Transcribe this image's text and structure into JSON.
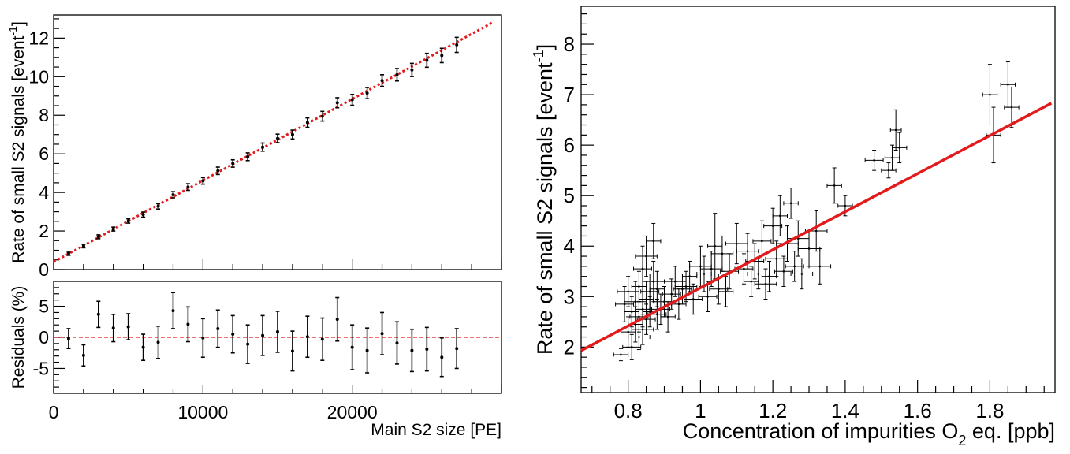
{
  "chart_data": [
    {
      "type": "scatter",
      "panel": "top-left",
      "ylabel": "Rate of small S2 signals [event",
      "ylabel_sup": "-1",
      "ylabel_close": "]",
      "xlim": [
        0,
        30000
      ],
      "ylim": [
        0,
        13.2
      ],
      "xticks": [
        0,
        10000,
        20000
      ],
      "xtick_labels": [
        "0",
        "10000",
        "20000"
      ],
      "yticks": [
        0,
        2,
        4,
        6,
        8,
        10,
        12
      ],
      "ytick_labels": [
        "0",
        "2",
        "4",
        "6",
        "8",
        "10",
        "12"
      ],
      "fit": {
        "type": "linear",
        "style": "dotted",
        "color": "#e31a1c",
        "x": [
          0,
          29500
        ],
        "y": [
          0.4,
          12.85
        ]
      },
      "series": [
        {
          "x": [
            1000,
            2000,
            3000,
            4000,
            5000,
            6000,
            7000,
            8000,
            9000,
            10000,
            11000,
            12000,
            13000,
            14000,
            15000,
            16000,
            17000,
            18000,
            19000,
            20000,
            21000,
            22000,
            23000,
            24000,
            25000,
            26000,
            27000
          ],
          "y": [
            0.82,
            1.22,
            1.7,
            2.1,
            2.52,
            2.85,
            3.28,
            3.88,
            4.28,
            4.6,
            5.12,
            5.5,
            5.85,
            6.35,
            6.8,
            7.0,
            7.62,
            7.95,
            8.65,
            8.8,
            9.15,
            9.8,
            10.1,
            10.35,
            10.85,
            11.1,
            11.65
          ],
          "err": [
            0.04,
            0.05,
            0.06,
            0.06,
            0.07,
            0.09,
            0.1,
            0.12,
            0.13,
            0.13,
            0.15,
            0.15,
            0.16,
            0.17,
            0.18,
            0.19,
            0.2,
            0.21,
            0.22,
            0.24,
            0.25,
            0.26,
            0.28,
            0.3,
            0.32,
            0.33,
            0.35
          ]
        }
      ]
    },
    {
      "type": "scatter",
      "panel": "bottom-left",
      "ylabel": "Residuals (%)",
      "xlabel": "Main S2 size [PE]",
      "xlim": [
        0,
        30000
      ],
      "ylim": [
        -9,
        9
      ],
      "yticks": [
        -5,
        0,
        5
      ],
      "ytick_labels": [
        "-5",
        "0",
        "5"
      ],
      "reference_line": {
        "y": 0,
        "style": "dashed",
        "color": "#e31a1c"
      },
      "series": [
        {
          "x": [
            1000,
            2000,
            3000,
            4000,
            5000,
            6000,
            7000,
            8000,
            9000,
            10000,
            11000,
            12000,
            13000,
            14000,
            15000,
            16000,
            17000,
            18000,
            19000,
            20000,
            21000,
            22000,
            23000,
            24000,
            25000,
            26000,
            27000
          ],
          "y": [
            -0.2,
            -2.9,
            3.7,
            1.5,
            1.7,
            -1.6,
            -0.8,
            4.3,
            2.1,
            -0.1,
            1.4,
            0.5,
            -1.1,
            0.3,
            0.9,
            -2.2,
            0.1,
            -0.3,
            2.9,
            -1.6,
            -2.1,
            0.6,
            -0.9,
            -2.1,
            -1.9,
            -3.2,
            -1.8
          ],
          "err": [
            1.6,
            1.7,
            2.1,
            2.2,
            2.1,
            2.1,
            2.6,
            2.9,
            2.8,
            3.1,
            3.0,
            3.0,
            3.1,
            3.2,
            3.3,
            3.2,
            3.3,
            3.4,
            3.5,
            3.6,
            3.6,
            3.4,
            3.4,
            3.4,
            3.5,
            3.1,
            3.2
          ]
        }
      ]
    },
    {
      "type": "scatter",
      "panel": "right",
      "ylabel": "Rate of small S2 signals [event",
      "ylabel_sup": "-1",
      "ylabel_close": "]",
      "xlabel": "Concentration of impurities O",
      "xlabel_sub": "2",
      "xlabel_tail": " eq. [ppb]",
      "xlim": [
        0.67,
        1.98
      ],
      "ylim": [
        1.1,
        8.75
      ],
      "xticks": [
        0.8,
        1.0,
        1.2,
        1.4,
        1.6,
        1.8
      ],
      "xtick_labels": [
        "0.8",
        "1",
        "1.2",
        "1.4",
        "1.6",
        "1.8"
      ],
      "yticks": [
        2,
        3,
        4,
        5,
        6,
        7,
        8
      ],
      "ytick_labels": [
        "2",
        "3",
        "4",
        "5",
        "6",
        "7",
        "8"
      ],
      "fit": {
        "type": "linear",
        "style": "solid",
        "color": "#e31a1c",
        "x": [
          0.67,
          1.97
        ],
        "y": [
          1.93,
          6.83
        ]
      },
      "series": [
        {
          "x": [
            0.78,
            0.79,
            0.8,
            0.8,
            0.81,
            0.81,
            0.82,
            0.82,
            0.83,
            0.83,
            0.83,
            0.84,
            0.84,
            0.84,
            0.85,
            0.85,
            0.85,
            0.86,
            0.86,
            0.87,
            0.87,
            0.88,
            0.88,
            0.89,
            0.9,
            0.91,
            0.92,
            0.93,
            0.94,
            0.95,
            0.96,
            0.97,
            0.98,
            1.0,
            1.01,
            1.02,
            1.03,
            1.04,
            1.05,
            1.06,
            1.07,
            1.08,
            1.1,
            1.12,
            1.13,
            1.14,
            1.15,
            1.16,
            1.17,
            1.18,
            1.19,
            1.2,
            1.21,
            1.22,
            1.23,
            1.24,
            1.25,
            1.26,
            1.27,
            1.28,
            1.3,
            1.32,
            1.33,
            1.37,
            1.4,
            1.48,
            1.52,
            1.53,
            1.54,
            1.55,
            1.8,
            1.81,
            1.85,
            1.86
          ],
          "y": [
            1.85,
            2.85,
            2.3,
            3.1,
            2.7,
            2.0,
            2.9,
            2.45,
            2.6,
            3.2,
            2.2,
            2.75,
            3.55,
            2.35,
            2.95,
            2.55,
            3.8,
            2.7,
            3.1,
            4.1,
            3.3,
            2.65,
            3.15,
            2.75,
            2.9,
            2.6,
            3.05,
            3.3,
            2.85,
            3.15,
            3.2,
            3.4,
            2.95,
            3.6,
            3.45,
            3.0,
            3.55,
            4.0,
            3.15,
            3.85,
            3.1,
            3.5,
            4.05,
            3.55,
            3.9,
            3.3,
            3.7,
            3.45,
            4.1,
            3.25,
            3.4,
            4.4,
            3.75,
            4.6,
            3.5,
            4.05,
            4.85,
            3.6,
            4.15,
            3.45,
            3.95,
            4.3,
            3.6,
            5.2,
            4.8,
            5.7,
            5.5,
            5.75,
            6.3,
            5.95,
            7.0,
            6.2,
            7.2,
            6.75
          ],
          "xerr": [
            0.02,
            0.025,
            0.02,
            0.03,
            0.02,
            0.025,
            0.03,
            0.02,
            0.025,
            0.02,
            0.03,
            0.02,
            0.025,
            0.03,
            0.02,
            0.025,
            0.03,
            0.02,
            0.025,
            0.02,
            0.03,
            0.025,
            0.02,
            0.025,
            0.03,
            0.02,
            0.025,
            0.03,
            0.02,
            0.025,
            0.03,
            0.02,
            0.025,
            0.03,
            0.02,
            0.025,
            0.03,
            0.02,
            0.025,
            0.03,
            0.02,
            0.025,
            0.03,
            0.025,
            0.03,
            0.02,
            0.025,
            0.03,
            0.025,
            0.03,
            0.02,
            0.025,
            0.03,
            0.02,
            0.025,
            0.03,
            0.02,
            0.025,
            0.03,
            0.03,
            0.03,
            0.03,
            0.03,
            0.02,
            0.02,
            0.025,
            0.02,
            0.02,
            0.015,
            0.02,
            0.02,
            0.02,
            0.02,
            0.02
          ],
          "yerr": [
            0.12,
            0.35,
            0.3,
            0.3,
            0.3,
            0.25,
            0.4,
            0.35,
            0.3,
            0.3,
            0.25,
            0.35,
            0.45,
            0.3,
            0.35,
            0.3,
            0.4,
            0.3,
            0.35,
            0.35,
            0.4,
            0.3,
            0.35,
            0.3,
            0.3,
            0.3,
            0.3,
            0.3,
            0.3,
            0.3,
            0.3,
            0.3,
            0.3,
            0.4,
            0.35,
            0.3,
            0.35,
            0.65,
            0.3,
            0.35,
            0.3,
            0.35,
            0.4,
            0.3,
            0.35,
            0.3,
            0.35,
            0.3,
            0.4,
            0.3,
            0.3,
            0.35,
            0.35,
            0.4,
            0.3,
            0.35,
            0.3,
            0.3,
            0.35,
            0.3,
            0.35,
            0.4,
            0.35,
            0.35,
            0.2,
            0.2,
            0.15,
            0.25,
            0.4,
            0.3,
            0.6,
            0.55,
            0.45,
            0.4
          ]
        }
      ]
    }
  ]
}
